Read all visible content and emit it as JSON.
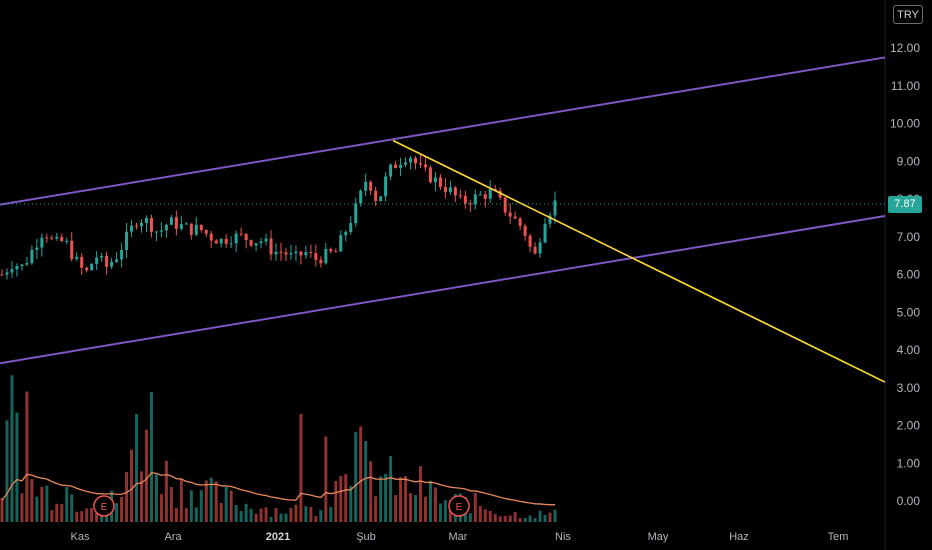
{
  "chart_data": {
    "type": "candlestick",
    "currency": "TRY",
    "last_price": "7.87",
    "colors": {
      "up": "#26a69a",
      "down": "#ef5350",
      "channel": "#7e57c2",
      "trendline": "#fdd835",
      "volume_ma": "#e8895a"
    },
    "y_axis": {
      "ticks": [
        "12.00",
        "11.00",
        "10.00",
        "9.00",
        "8.00",
        "7.00",
        "6.00",
        "5.00",
        "4.00",
        "3.00",
        "2.00",
        "1.00",
        "0.00"
      ],
      "ylim": [
        -0.6,
        12.8
      ]
    },
    "x_axis": {
      "ticks": [
        {
          "label": "Kas",
          "bold": false
        },
        {
          "label": "Ara",
          "bold": false
        },
        {
          "label": "2021",
          "bold": true
        },
        {
          "label": "Şub",
          "bold": false
        },
        {
          "label": "Mar",
          "bold": false
        },
        {
          "label": "Nis",
          "bold": false
        },
        {
          "label": "May",
          "bold": false
        },
        {
          "label": "Haz",
          "bold": false
        },
        {
          "label": "Tem",
          "bold": false
        }
      ]
    },
    "events": [
      "E",
      "E"
    ],
    "price_anchors": [
      6.0,
      6.3,
      6.2,
      6.7,
      7.2,
      6.8,
      6.9,
      6.4,
      6.0,
      6.5,
      6.2,
      6.5,
      7.0,
      7.5,
      7.4,
      7.1,
      7.4,
      7.3,
      7.2,
      7.2,
      7.0,
      6.9,
      7.0,
      7.0,
      6.9,
      6.9,
      6.6,
      6.6,
      6.4,
      6.6,
      6.4,
      6.5,
      6.6,
      7.2,
      7.8,
      8.6,
      7.9,
      8.7,
      9.0,
      9.2,
      8.8,
      8.6,
      8.4,
      8.2,
      7.9,
      8.0,
      8.1,
      8.2,
      7.8,
      7.5,
      7.2,
      6.4,
      7.5,
      7.9
    ],
    "volume_levels": [
      1.0,
      2.9,
      1.0,
      0.8,
      0.7,
      1.0,
      0.5,
      0.6,
      0.8,
      0.5,
      0.7,
      2.3,
      2.6,
      1.3,
      0.9,
      0.8,
      0.9,
      0.7,
      0.6,
      0.5,
      0.4,
      0.4,
      0.3,
      0.3,
      0.3,
      0.3,
      0.4,
      0.6,
      2.4,
      1.6,
      1.2,
      1.1,
      1.0,
      0.8,
      0.9,
      0.7,
      0.5,
      0.5,
      0.5,
      0.4,
      0.3,
      0.2,
      0.2,
      0.2,
      0.2,
      0.2
    ]
  }
}
